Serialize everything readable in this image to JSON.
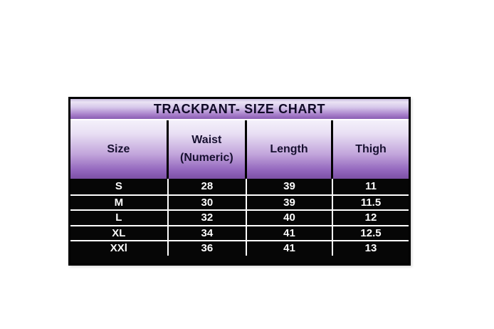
{
  "chart_data": {
    "type": "table",
    "title": "TRACKPANT- SIZE CHART",
    "columns": [
      "Size",
      "Waist (Numeric)",
      "Length",
      "Thigh"
    ],
    "rows": [
      [
        "S",
        "28",
        "39",
        "11"
      ],
      [
        "M",
        "30",
        "39",
        "11.5"
      ],
      [
        "L",
        "32",
        "40",
        "12"
      ],
      [
        "XL",
        "34",
        "41",
        "12.5"
      ],
      [
        "XXl",
        "36",
        "41",
        "13"
      ]
    ]
  },
  "theme": {
    "page_bg": "#ffffff",
    "table_border": "#000000",
    "title_text": "#100a26",
    "header_text": "#171030",
    "data_row_bg": "#060606",
    "data_text": "#fdfdfd",
    "separator": "#ffffff",
    "title_grad_top": "#eae3f4",
    "title_grad_bottom": "#8a5db3",
    "header_grad_top": "#f4f0fa",
    "header_grad_bottom": "#7c50a5"
  }
}
